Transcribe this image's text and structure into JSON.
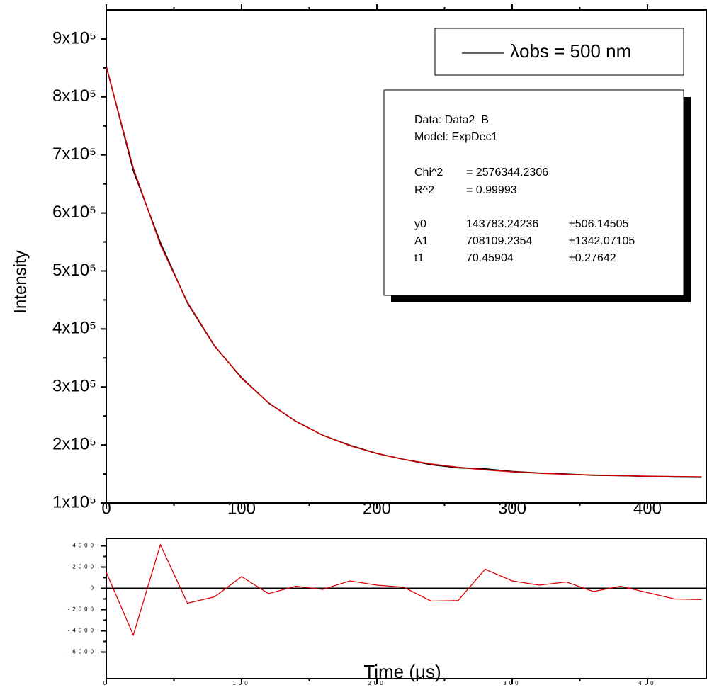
{
  "chart_data": [
    {
      "type": "line",
      "ylabel": "Intensity",
      "x": [
        0,
        20,
        40,
        60,
        80,
        100,
        120,
        140,
        160,
        180,
        200,
        220,
        240,
        260,
        280,
        300,
        320,
        340,
        360,
        380,
        400,
        420,
        440
      ],
      "series": [
        {
          "name": "λobs = 500 nm",
          "color": "#000000",
          "values": [
            853400,
            672500,
            549200,
            444500,
            370500,
            316200,
            272200,
            241100,
            216800,
            199500,
            185500,
            175100,
            166100,
            160400,
            158900,
            154500,
            151600,
            150100,
            147800,
            147200,
            145800,
            144600,
            144200
          ]
        },
        {
          "color": "#cc0000",
          "values": [
            851892,
            676900,
            545100,
            445900,
            371300,
            315100,
            272700,
            240900,
            216900,
            198800,
            185200,
            175000,
            167300,
            161500,
            157100,
            153800,
            151300,
            149500,
            148100,
            147000,
            146200,
            145600,
            145200
          ]
        }
      ],
      "xlim": [
        0,
        444
      ],
      "xticks": [
        0,
        100,
        200,
        300,
        400
      ],
      "ylim": [
        100000,
        950000
      ],
      "yticks": [
        {
          "value": 100000,
          "label": "1x10⁵"
        },
        {
          "value": 200000,
          "label": "2x10⁵"
        },
        {
          "value": 300000,
          "label": "3x10⁵"
        },
        {
          "value": 400000,
          "label": "4x10⁵"
        },
        {
          "value": 500000,
          "label": "5x10⁵"
        },
        {
          "value": 600000,
          "label": "6x10⁵"
        },
        {
          "value": 700000,
          "label": "7x10⁵"
        },
        {
          "value": 800000,
          "label": "8x10⁵"
        },
        {
          "value": 900000,
          "label": "9x10⁵"
        }
      ],
      "fit_report": {
        "data": "Data: Data2_B",
        "model": "Model: ExpDec1",
        "stats": [
          [
            "Chi^2",
            "= 2576344.2306"
          ],
          [
            "R^2",
            "= 0.99993"
          ]
        ],
        "params": [
          [
            "y0",
            "143783.24236",
            "±506.14505"
          ],
          [
            "A1",
            "708109.2354",
            "±1342.07105"
          ],
          [
            "t1",
            "70.45904",
            "±0.27642"
          ]
        ]
      }
    },
    {
      "type": "line",
      "xlabel": "Time (μs)",
      "x": [
        0,
        20,
        40,
        60,
        80,
        100,
        120,
        140,
        160,
        180,
        200,
        220,
        240,
        260,
        280,
        300,
        320,
        340,
        360,
        380,
        400,
        420,
        440
      ],
      "series": [
        {
          "color": "#dd0000",
          "values": [
            1500,
            -4400,
            4100,
            -1400,
            -800,
            1100,
            -500,
            200,
            -100,
            700,
            300,
            100,
            -1200,
            -1150,
            1800,
            700,
            300,
            600,
            -300,
            200,
            -400,
            -1000,
            -1050
          ]
        }
      ],
      "hline": 0,
      "xlim": [
        0,
        444
      ],
      "xticks": [
        0,
        100,
        200,
        300,
        400
      ],
      "ylim": [
        -8500,
        4700
      ],
      "yticks": [
        4000,
        2000,
        0,
        -2000,
        -4000,
        -6000
      ]
    }
  ]
}
